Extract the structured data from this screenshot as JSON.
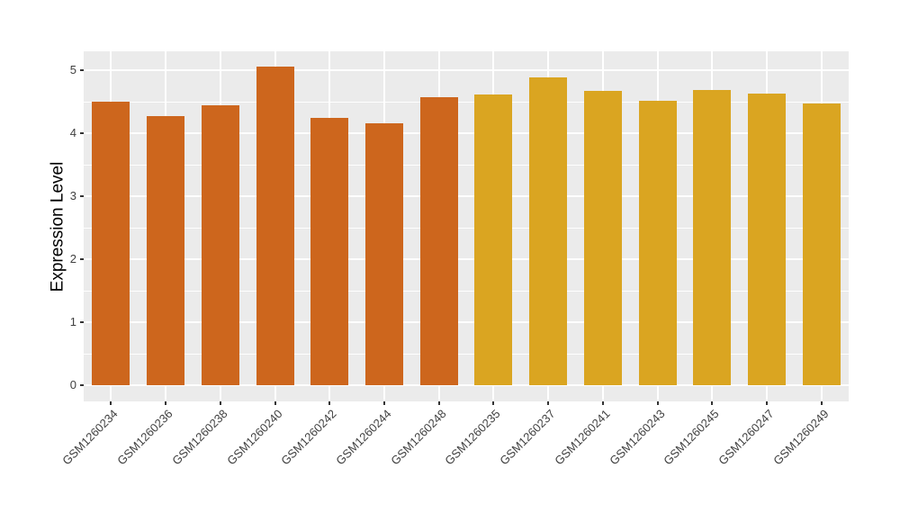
{
  "chart_data": {
    "type": "bar",
    "title": "",
    "xlabel": "",
    "ylabel": "Expression Level",
    "categories": [
      "GSM1260234",
      "GSM1260236",
      "GSM1260238",
      "GSM1260240",
      "GSM1260242",
      "GSM1260244",
      "GSM1260248",
      "GSM1260235",
      "GSM1260237",
      "GSM1260241",
      "GSM1260243",
      "GSM1260245",
      "GSM1260247",
      "GSM1260249"
    ],
    "values": [
      4.5,
      4.27,
      4.45,
      5.06,
      4.25,
      4.16,
      4.57,
      4.61,
      4.89,
      4.67,
      4.51,
      4.69,
      4.63,
      4.47
    ],
    "bar_groups": [
      0,
      0,
      0,
      0,
      0,
      0,
      0,
      1,
      1,
      1,
      1,
      1,
      1,
      1
    ],
    "group_colors": [
      "#CD661D",
      "#DAA521"
    ],
    "yticks": [
      0,
      1,
      2,
      3,
      4,
      5
    ],
    "yticks_minor": [
      0.5,
      1.5,
      2.5,
      3.5,
      4.5
    ],
    "ylim": [
      -0.25,
      5.3
    ],
    "grid": "on",
    "legend": "none",
    "panel_background": "#EBEBEB",
    "grid_color": "#FFFFFF",
    "axis_text_color": "#404040",
    "axis_title_color": "#000000",
    "background": "#FFFFFF"
  }
}
